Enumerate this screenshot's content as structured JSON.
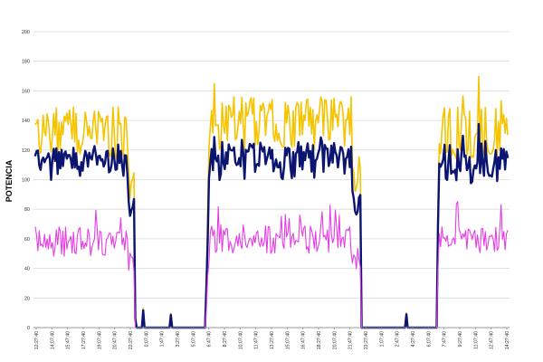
{
  "chart_data": {
    "type": "line",
    "title": "",
    "xlabel": "",
    "ylabel": "POTENCIA",
    "ylim": [
      0,
      200
    ],
    "yticks": [
      "0",
      "20",
      "40",
      "60",
      "80",
      "100",
      "120",
      "140",
      "160",
      "180",
      "200"
    ],
    "x_tick_labels": [
      "12:27:40",
      "14:07:40",
      "15:47:40",
      "17:27:40",
      "19:07:40",
      "20:47:40",
      "22:27:40",
      "0:07:40",
      "1:47:40",
      "3:27:40",
      "5:07:40",
      "6:47:40",
      "8:27:40",
      "10:07:40",
      "11:47:40",
      "13:27:40",
      "15:07:40",
      "16:47:40",
      "18:27:40",
      "20:07:40",
      "21:47:40",
      "23:27:40",
      "1:07:40",
      "2:47:40",
      "4:27:40",
      "6:07:40",
      "7:47:40",
      "9:27:40",
      "11:07:40",
      "12:47:40",
      "14:27:40"
    ],
    "segments": [
      {
        "start": 0,
        "end": 0.21,
        "state": "on",
        "levels": {
          "yellow": 132,
          "navy": 112,
          "magenta": 58
        }
      },
      {
        "start": 0.21,
        "end": 0.36,
        "state": "off",
        "levels": {
          "yellow": 0,
          "navy": 0,
          "magenta": 0
        }
      },
      {
        "start": 0.36,
        "end": 0.69,
        "state": "on",
        "levels": {
          "yellow": 138,
          "navy": 114,
          "magenta": 60
        }
      },
      {
        "start": 0.69,
        "end": 0.85,
        "state": "off",
        "levels": {
          "yellow": 0,
          "navy": 0,
          "magenta": 0
        }
      },
      {
        "start": 0.85,
        "end": 1.0,
        "state": "on",
        "levels": {
          "yellow": 132,
          "navy": 112,
          "magenta": 60
        }
      }
    ],
    "series": [
      {
        "name": "yellow",
        "color": "#f5c400",
        "width": 1.6
      },
      {
        "name": "navy",
        "color": "#0b1470",
        "width": 2.4
      },
      {
        "name": "magenta",
        "color": "#e53de5",
        "width": 1.1
      }
    ],
    "grid": true,
    "legend": "none"
  }
}
